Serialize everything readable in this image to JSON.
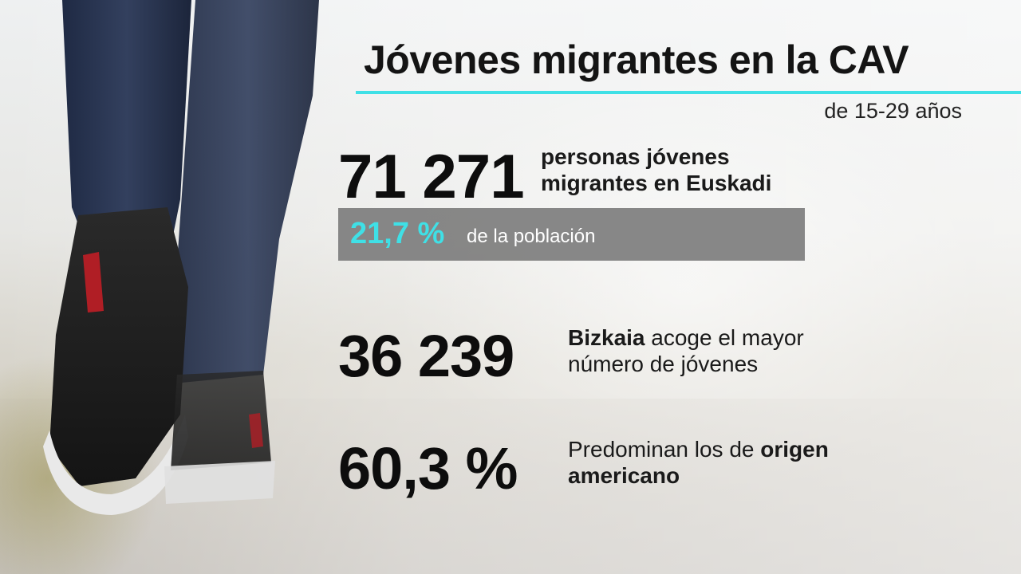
{
  "title": "Jóvenes migrantes en la CAV",
  "subtitle": "de 15-29 años",
  "stat1": {
    "value": "71 271",
    "desc_line1": "personas jóvenes",
    "desc_line2": "migrantes en Euskadi",
    "percent": "21,7 %",
    "percent_desc": "de la población"
  },
  "stat2": {
    "value": "36 239",
    "desc_bold": "Bizkaia",
    "desc_rest_line1": " acoge el mayor",
    "desc_line2": "número de jóvenes"
  },
  "stat3": {
    "value": "60,3 %",
    "desc_line1_plain": "Predominan los de ",
    "desc_line1_bold": "origen",
    "desc_line2_bold": "americano"
  },
  "colors": {
    "accent": "#3fe0e6",
    "bar": "#787878",
    "text": "#111111"
  }
}
